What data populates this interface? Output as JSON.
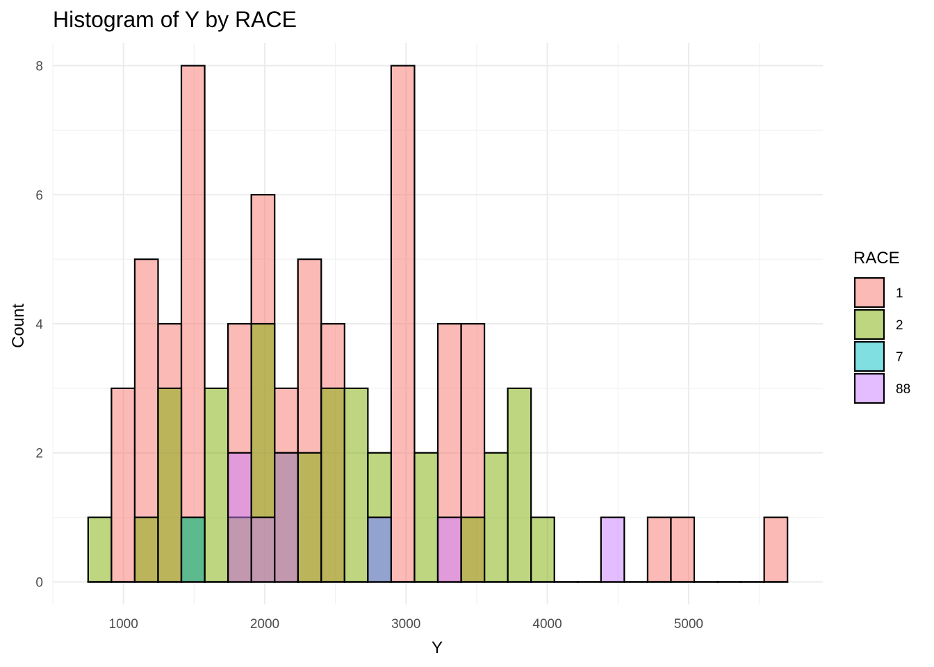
{
  "chart_data": {
    "type": "bar",
    "title": "Histogram of Y by RACE",
    "xlabel": "Y",
    "ylabel": "Count",
    "xlim": [
      500,
      5950
    ],
    "ylim": [
      -0.35,
      8.35
    ],
    "x_ticks": [
      1000,
      2000,
      3000,
      4000,
      5000
    ],
    "y_ticks": [
      0,
      2,
      4,
      6,
      8
    ],
    "grid": true,
    "position": "identity",
    "fill_alpha": 0.5,
    "legend": {
      "title": "RACE",
      "placement": "right"
    },
    "bin_edges": [
      750,
      915,
      1080,
      1245,
      1410,
      1575,
      1740,
      1905,
      2070,
      2235,
      2400,
      2565,
      2730,
      2895,
      3060,
      3225,
      3390,
      3555,
      3720,
      3885,
      4050,
      4215,
      4380,
      4545,
      4710,
      4875,
      5040,
      5205,
      5370,
      5535,
      5700
    ],
    "series": [
      {
        "name": "1",
        "color": "#F8766D",
        "values": [
          0,
          3,
          5,
          4,
          8,
          0,
          4,
          6,
          3,
          5,
          4,
          0,
          0,
          8,
          0,
          4,
          4,
          0,
          0,
          0,
          0,
          0,
          0,
          0,
          1,
          1,
          0,
          0,
          0,
          1
        ]
      },
      {
        "name": "2",
        "color": "#7CAE00",
        "values": [
          1,
          0,
          1,
          3,
          1,
          3,
          1,
          4,
          2,
          2,
          3,
          3,
          2,
          0,
          2,
          0,
          1,
          2,
          3,
          1,
          0,
          0,
          0,
          0,
          0,
          0,
          0,
          0,
          0,
          0
        ]
      },
      {
        "name": "7",
        "color": "#00BFC4",
        "values": [
          0,
          0,
          0,
          0,
          1,
          0,
          0,
          0,
          0,
          0,
          0,
          0,
          1,
          0,
          0,
          0,
          0,
          0,
          0,
          0,
          0,
          0,
          0,
          0,
          0,
          0,
          0,
          0,
          0,
          0
        ]
      },
      {
        "name": "88",
        "color": "#C77CFF",
        "values": [
          0,
          0,
          0,
          0,
          0,
          0,
          2,
          1,
          2,
          0,
          0,
          0,
          1,
          0,
          0,
          1,
          0,
          0,
          0,
          0,
          0,
          0,
          1,
          0,
          0,
          0,
          0,
          0,
          0,
          0
        ]
      }
    ]
  }
}
